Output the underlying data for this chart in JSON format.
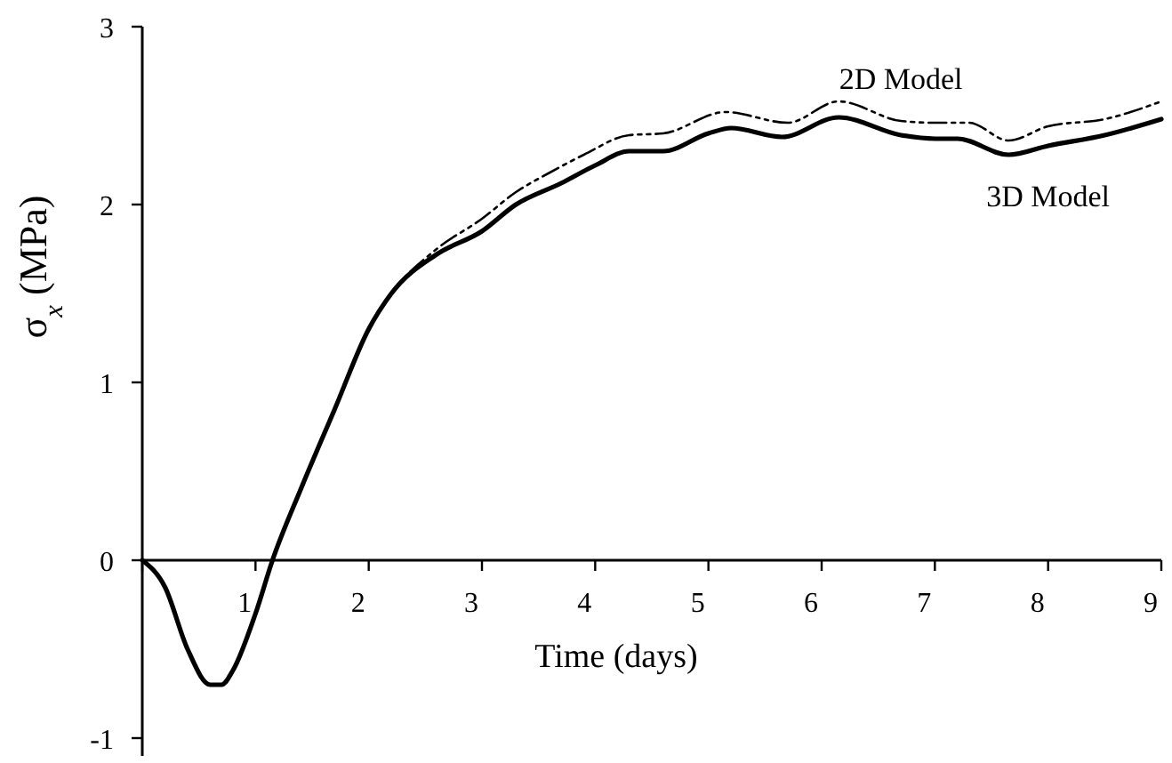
{
  "chart_data": {
    "type": "line",
    "xlabel": "Time (days)",
    "ylabel": "σ$_{x}$ (MPa)",
    "xlim": [
      0,
      9
    ],
    "xticks": [
      {
        "value": 0,
        "label": null
      },
      1,
      2,
      3,
      4,
      5,
      6,
      7,
      8,
      9
    ],
    "ylim": [
      -1.1,
      3
    ],
    "yticks": [
      -1,
      0,
      1,
      2,
      3
    ],
    "grid": false,
    "series": [
      {
        "name": "2D Model",
        "color": "#000000",
        "line_style": "dashed",
        "x": [
          0,
          0.2,
          0.4,
          0.6,
          0.7,
          0.8,
          1.0,
          1.15,
          1.4,
          1.7,
          2.0,
          2.2,
          2.6,
          3.0,
          3.3,
          3.6,
          3.9,
          4.3,
          4.6,
          5.15,
          5.7,
          6.15,
          6.7,
          7.0,
          7.3,
          7.65,
          8.0,
          8.5,
          9
        ],
        "values": [
          0,
          -0.15,
          -0.5,
          -0.7,
          -0.7,
          -0.62,
          -0.3,
          0,
          0.4,
          0.85,
          1.3,
          1.5,
          1.75,
          1.92,
          2.07,
          2.18,
          2.28,
          2.39,
          2.4,
          2.52,
          2.46,
          2.58,
          2.47,
          2.46,
          2.46,
          2.36,
          2.44,
          2.48,
          2.58
        ]
      },
      {
        "name": "3D Model",
        "color": "#000000",
        "line_style": "solid",
        "x": [
          0,
          0.2,
          0.4,
          0.6,
          0.7,
          0.8,
          1.0,
          1.15,
          1.4,
          1.7,
          2.0,
          2.2,
          2.6,
          3.0,
          3.3,
          3.7,
          4.0,
          4.3,
          4.6,
          5.0,
          5.2,
          5.65,
          6.15,
          6.7,
          7.0,
          7.2,
          7.65,
          8.0,
          8.5,
          9
        ],
        "values": [
          0,
          -0.15,
          -0.5,
          -0.7,
          -0.7,
          -0.62,
          -0.3,
          0,
          0.4,
          0.85,
          1.3,
          1.5,
          1.72,
          1.85,
          2.0,
          2.12,
          2.22,
          2.3,
          2.3,
          2.4,
          2.43,
          2.38,
          2.49,
          2.39,
          2.37,
          2.37,
          2.28,
          2.33,
          2.39,
          2.48
        ]
      }
    ]
  }
}
